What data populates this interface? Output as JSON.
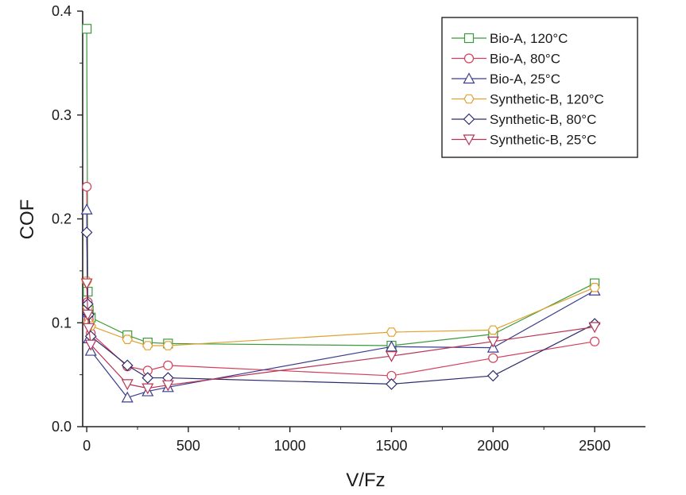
{
  "chart_data": {
    "type": "line",
    "xlabel": "V/Fz",
    "ylabel": "COF",
    "xlim": [
      -20,
      2750
    ],
    "ylim": [
      0,
      0.4
    ],
    "xticks": [
      0,
      500,
      1000,
      1500,
      2000,
      2500
    ],
    "yticks": [
      0.0,
      0.1,
      0.2,
      0.3,
      0.4
    ],
    "xtick_labels": [
      "0",
      "500",
      "1000",
      "1500",
      "2000",
      "2500"
    ],
    "ytick_labels": [
      "0.0",
      "0.1",
      "0.2",
      "0.3",
      "0.4"
    ],
    "grid": false,
    "legend_position": "top-right",
    "series": [
      {
        "name": "Bio-A, 120°C",
        "color": "#3b9a3b",
        "marker": "square",
        "x": [
          0,
          5,
          10,
          20,
          200,
          300,
          400,
          1500,
          2000,
          2500
        ],
        "y": [
          0.383,
          0.13,
          0.112,
          0.105,
          0.088,
          0.081,
          0.08,
          0.078,
          0.089,
          0.138
        ]
      },
      {
        "name": "Bio-A, 80°C",
        "color": "#d43f5a",
        "marker": "circle",
        "x": [
          0,
          5,
          10,
          20,
          200,
          300,
          400,
          1500,
          2000,
          2500
        ],
        "y": [
          0.231,
          0.12,
          0.103,
          0.09,
          0.058,
          0.054,
          0.059,
          0.049,
          0.066,
          0.082
        ]
      },
      {
        "name": "Bio-A, 25°C",
        "color": "#3a3d8f",
        "marker": "triangle-up",
        "x": [
          0,
          5,
          10,
          20,
          200,
          300,
          400,
          1500,
          2000,
          2500
        ],
        "y": [
          0.209,
          0.11,
          0.085,
          0.073,
          0.028,
          0.034,
          0.038,
          0.077,
          0.076,
          0.131
        ]
      },
      {
        "name": "Synthetic-B, 120°C",
        "color": "#e0a030",
        "marker": "hexagon",
        "x": [
          0,
          5,
          10,
          20,
          200,
          300,
          400,
          1500,
          2000,
          2500
        ],
        "y": [
          0.14,
          0.115,
          0.1,
          0.097,
          0.084,
          0.078,
          0.078,
          0.091,
          0.093,
          0.134
        ]
      },
      {
        "name": "Synthetic-B, 80°C",
        "color": "#2c2c6e",
        "marker": "diamond",
        "x": [
          0,
          5,
          10,
          20,
          200,
          300,
          400,
          1500,
          2000,
          2500
        ],
        "y": [
          0.187,
          0.118,
          0.108,
          0.087,
          0.059,
          0.047,
          0.047,
          0.041,
          0.049,
          0.099
        ]
      },
      {
        "name": "Synthetic-B, 25°C",
        "color": "#b83455",
        "marker": "triangle-down",
        "x": [
          0,
          5,
          10,
          20,
          200,
          300,
          400,
          1500,
          2000,
          2500
        ],
        "y": [
          0.138,
          0.108,
          0.095,
          0.079,
          0.041,
          0.037,
          0.04,
          0.068,
          0.082,
          0.096
        ]
      }
    ]
  }
}
